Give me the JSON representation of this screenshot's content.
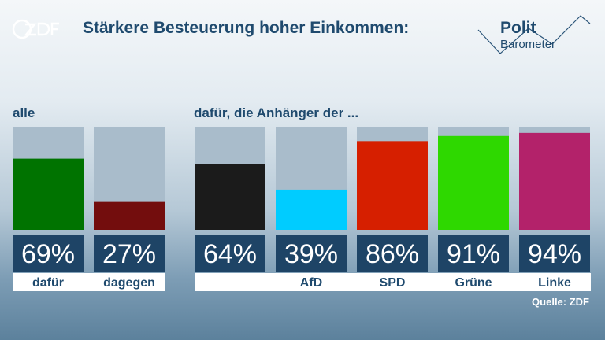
{
  "logo_text": "ZDF",
  "title": "Stärkere Besteuerung hoher Einkommen:",
  "brand": {
    "line1": "Polit",
    "line2": "Barometer"
  },
  "group_labels": {
    "all": "alle",
    "parties": "dafür, die Anhänger der ..."
  },
  "source": "Quelle: ZDF",
  "colors": {
    "bar_background": "#a9bccb",
    "value_box": "#1e4466",
    "dafuer": "#007300",
    "dagegen": "#730d0d",
    "union": "#1b1b1b",
    "afd": "#00ccff",
    "spd": "#d61f00",
    "gruene": "#2ed800",
    "linke": "#b3226a"
  },
  "chart_data": {
    "type": "bar",
    "ylim": [
      0,
      100
    ],
    "unit": "%",
    "categories": [
      "dafür",
      "dagegen",
      "",
      "AfD",
      "SPD",
      "Grüne",
      "Linke"
    ],
    "values": [
      69,
      27,
      64,
      39,
      86,
      91,
      94
    ],
    "value_labels": [
      "69%",
      "27%",
      "64%",
      "39%",
      "86%",
      "91%",
      "94%"
    ],
    "bar_colors": [
      "#007300",
      "#730d0d",
      "#1b1b1b",
      "#00ccff",
      "#d61f00",
      "#2ed800",
      "#b3226a"
    ]
  }
}
